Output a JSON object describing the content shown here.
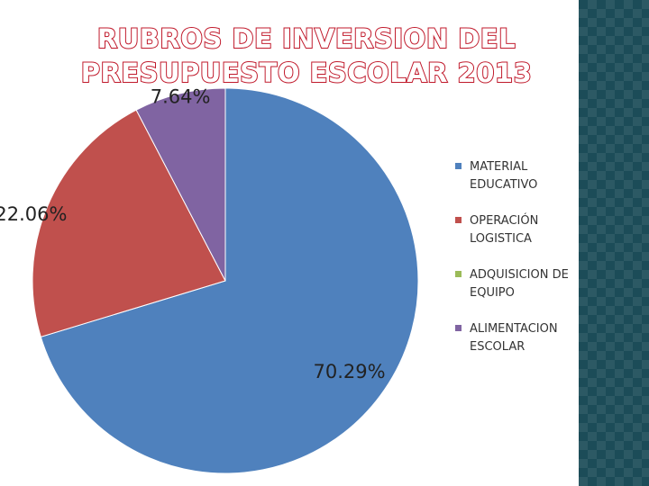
{
  "slide": {
    "title": "RUBROS DE INVERSION DEL\nPRESUPUESTO ESCOLAR 2013",
    "title_color": "#c0192b",
    "side_strip_color": "#1c4c58"
  },
  "chart_data": {
    "type": "pie",
    "title": "RUBROS DE INVERSION DEL PRESUPUESTO ESCOLAR 2013",
    "legend_position": "right",
    "slices": [
      {
        "name": "MATERIAL EDUCATIVO",
        "value": 70.29,
        "label": "70.29%",
        "color": "#4f81bd"
      },
      {
        "name": "OPERACIÓN LOGISTICA",
        "value": 22.06,
        "label": "22.06%",
        "color": "#c0504d"
      },
      {
        "name": "ADQUISICION DE EQUIPO",
        "value": 0,
        "label": "",
        "color": "#9bbb59"
      },
      {
        "name": "ALIMENTACION ESCOLAR",
        "value": 7.64,
        "label": "7.64%",
        "color": "#8064a2"
      }
    ]
  }
}
